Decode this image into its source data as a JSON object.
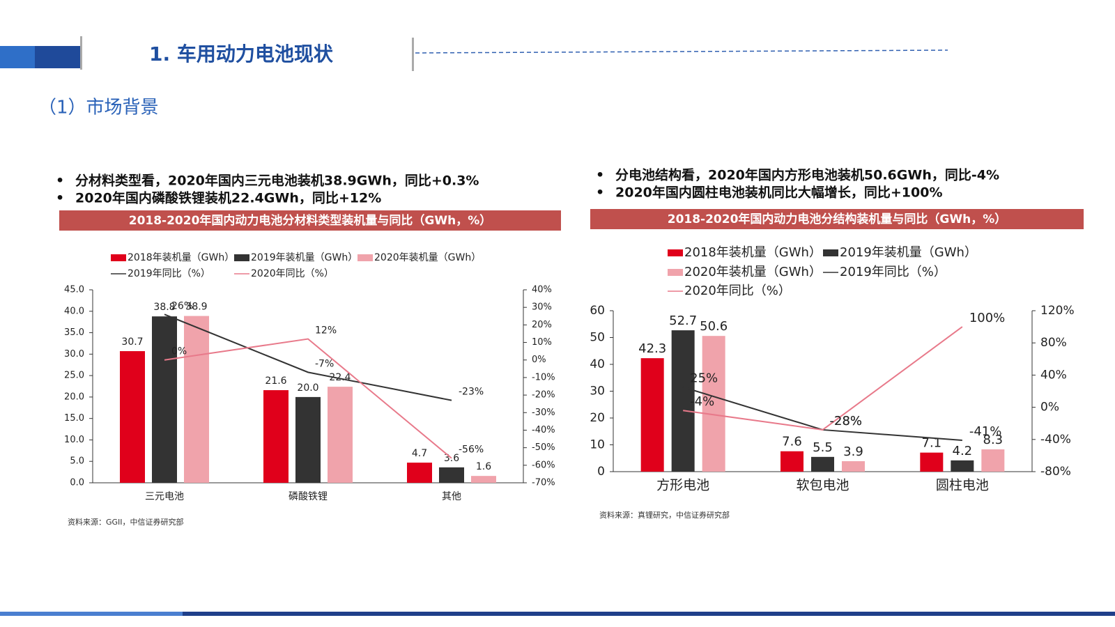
{
  "header": {
    "title": "1. 车用动力电池现状",
    "subtitle": "（1）市场背景"
  },
  "bullets": [
    [
      "分材料类型看，2020年国内三元电池装机38.9GWh，同比+0.3%",
      "2020年国内磷酸铁锂装机22.4GWh，同比+12%"
    ],
    [
      "分电池结构看，2020年国内方形电池装机50.6GWh，同比-4%",
      "2020年国内圆柱电池装机同比大幅增长，同比+100%"
    ]
  ],
  "chart_data": [
    {
      "type": "bar",
      "title": "2018-2020年国内动力电池分材料类型装机量与同比（GWh，%）",
      "source": "资料来源：GGII，中信证券研究部",
      "categories": [
        "三元电池",
        "磷酸铁锂",
        "其他"
      ],
      "series": [
        {
          "name": "2018年装机量（GWh）",
          "color": "#e0001b",
          "values": [
            30.7,
            21.6,
            4.7
          ],
          "value_labels": [
            "30.7",
            "21.6",
            "4.7"
          ]
        },
        {
          "name": "2019年装机量（GWh）",
          "color": "#333333",
          "values": [
            38.8,
            20.0,
            3.6
          ],
          "value_labels": [
            "38.8",
            "20.0",
            "3.6"
          ]
        },
        {
          "name": "2020年装机量（GWh）",
          "color": "#f0a3ab",
          "values": [
            38.9,
            22.4,
            1.6
          ],
          "value_labels": [
            "38.9",
            "22.4",
            "1.6"
          ]
        },
        {
          "name": "2019年同比（%）",
          "color": "#333333",
          "axis": "y2",
          "values": [
            26,
            -7,
            -23
          ],
          "value_labels": [
            "26%",
            "-7%",
            "-23%"
          ]
        },
        {
          "name": "2020年同比（%）",
          "color": "#e8798a",
          "axis": "y2",
          "values": [
            0,
            12,
            -56
          ],
          "value_labels": [
            "0%",
            "12%",
            "-56%"
          ]
        }
      ],
      "ylim": [
        0,
        45
      ],
      "yticks": [
        {
          "value": 0,
          "label": "0.0"
        },
        {
          "value": 5,
          "label": "5.0"
        },
        {
          "value": 10,
          "label": "10.0"
        },
        {
          "value": 15,
          "label": "15.0"
        },
        {
          "value": 20,
          "label": "20.0"
        },
        {
          "value": 25,
          "label": "25.0"
        },
        {
          "value": 30,
          "label": "30.0"
        },
        {
          "value": 35,
          "label": "35.0"
        },
        {
          "value": 40,
          "label": "40.0"
        },
        {
          "value": 45,
          "label": "45.0"
        }
      ],
      "y2lim": [
        -70,
        40
      ],
      "y2ticks": [
        {
          "value": -70,
          "label": "-70%"
        },
        {
          "value": -60,
          "label": "-60%"
        },
        {
          "value": -50,
          "label": "-50%"
        },
        {
          "value": -40,
          "label": "-40%"
        },
        {
          "value": -30,
          "label": "-30%"
        },
        {
          "value": -20,
          "label": "-20%"
        },
        {
          "value": -10,
          "label": "-10%"
        },
        {
          "value": 0,
          "label": "0%"
        },
        {
          "value": 10,
          "label": "10%"
        },
        {
          "value": 20,
          "label": "20%"
        },
        {
          "value": 30,
          "label": "30%"
        },
        {
          "value": 40,
          "label": "40%"
        }
      ]
    },
    {
      "type": "bar",
      "title": "2018-2020年国内动力电池分结构装机量与同比（GWh，%）",
      "source": "资料来源：真锂研究，中信证券研究部",
      "categories": [
        "方形电池",
        "软包电池",
        "圆柱电池"
      ],
      "series": [
        {
          "name": "2018年装机量（GWh）",
          "color": "#e0001b",
          "values": [
            42.3,
            7.6,
            7.1
          ]
        },
        {
          "name": "2019年装机量（GWh）",
          "color": "#333333",
          "values": [
            52.7,
            5.5,
            4.2
          ]
        },
        {
          "name": "2020年装机量（GWh）",
          "color": "#f0a3ab",
          "values": [
            50.6,
            3.9,
            8.3
          ]
        },
        {
          "name": "2019年同比（%）",
          "color": "#333333",
          "axis": "y2",
          "values": [
            25,
            -28,
            -41
          ],
          "value_labels": [
            "25%",
            "-28%",
            "-41%"
          ]
        },
        {
          "name": "2020年同比（%）",
          "color": "#e8798a",
          "axis": "y2",
          "values": [
            -4,
            -28,
            100
          ],
          "value_labels": [
            "-4%",
            "-28%",
            "100%"
          ]
        }
      ],
      "ylim": [
        0,
        60
      ],
      "yticks": [
        0,
        10,
        20,
        30,
        40,
        50,
        60
      ],
      "y2lim": [
        -80,
        120
      ],
      "y2ticks": [
        {
          "value": -80,
          "label": "-80%"
        },
        {
          "value": -40,
          "label": "-40%"
        },
        {
          "value": 0,
          "label": "0%"
        },
        {
          "value": 40,
          "label": "40%"
        },
        {
          "value": 80,
          "label": "80%"
        },
        {
          "value": 120,
          "label": "120%"
        }
      ]
    }
  ]
}
